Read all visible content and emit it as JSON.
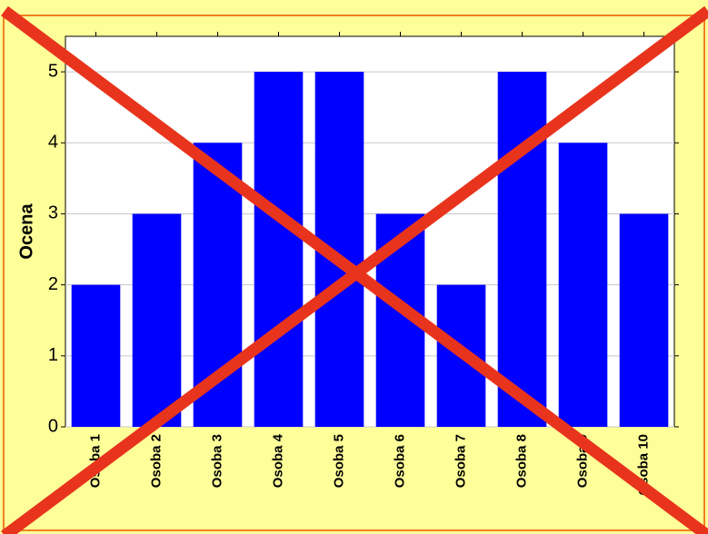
{
  "chart_data": {
    "type": "bar",
    "y_label": "Ocena",
    "categories": [
      "Osoba 1",
      "Osoba 2",
      "Osoba 3",
      "Osoba 4",
      "Osoba 5",
      "Osoba 6",
      "Osoba 7",
      "Osoba 8",
      "Osoba 9",
      "Osoba 10"
    ],
    "values": [
      2,
      3,
      4,
      5,
      5,
      3,
      2,
      5,
      4,
      3
    ],
    "color": "#0000ff",
    "ylim": [
      0,
      5.5
    ],
    "yticks": [
      0,
      1,
      2,
      3,
      4,
      5
    ],
    "grid": true
  }
}
